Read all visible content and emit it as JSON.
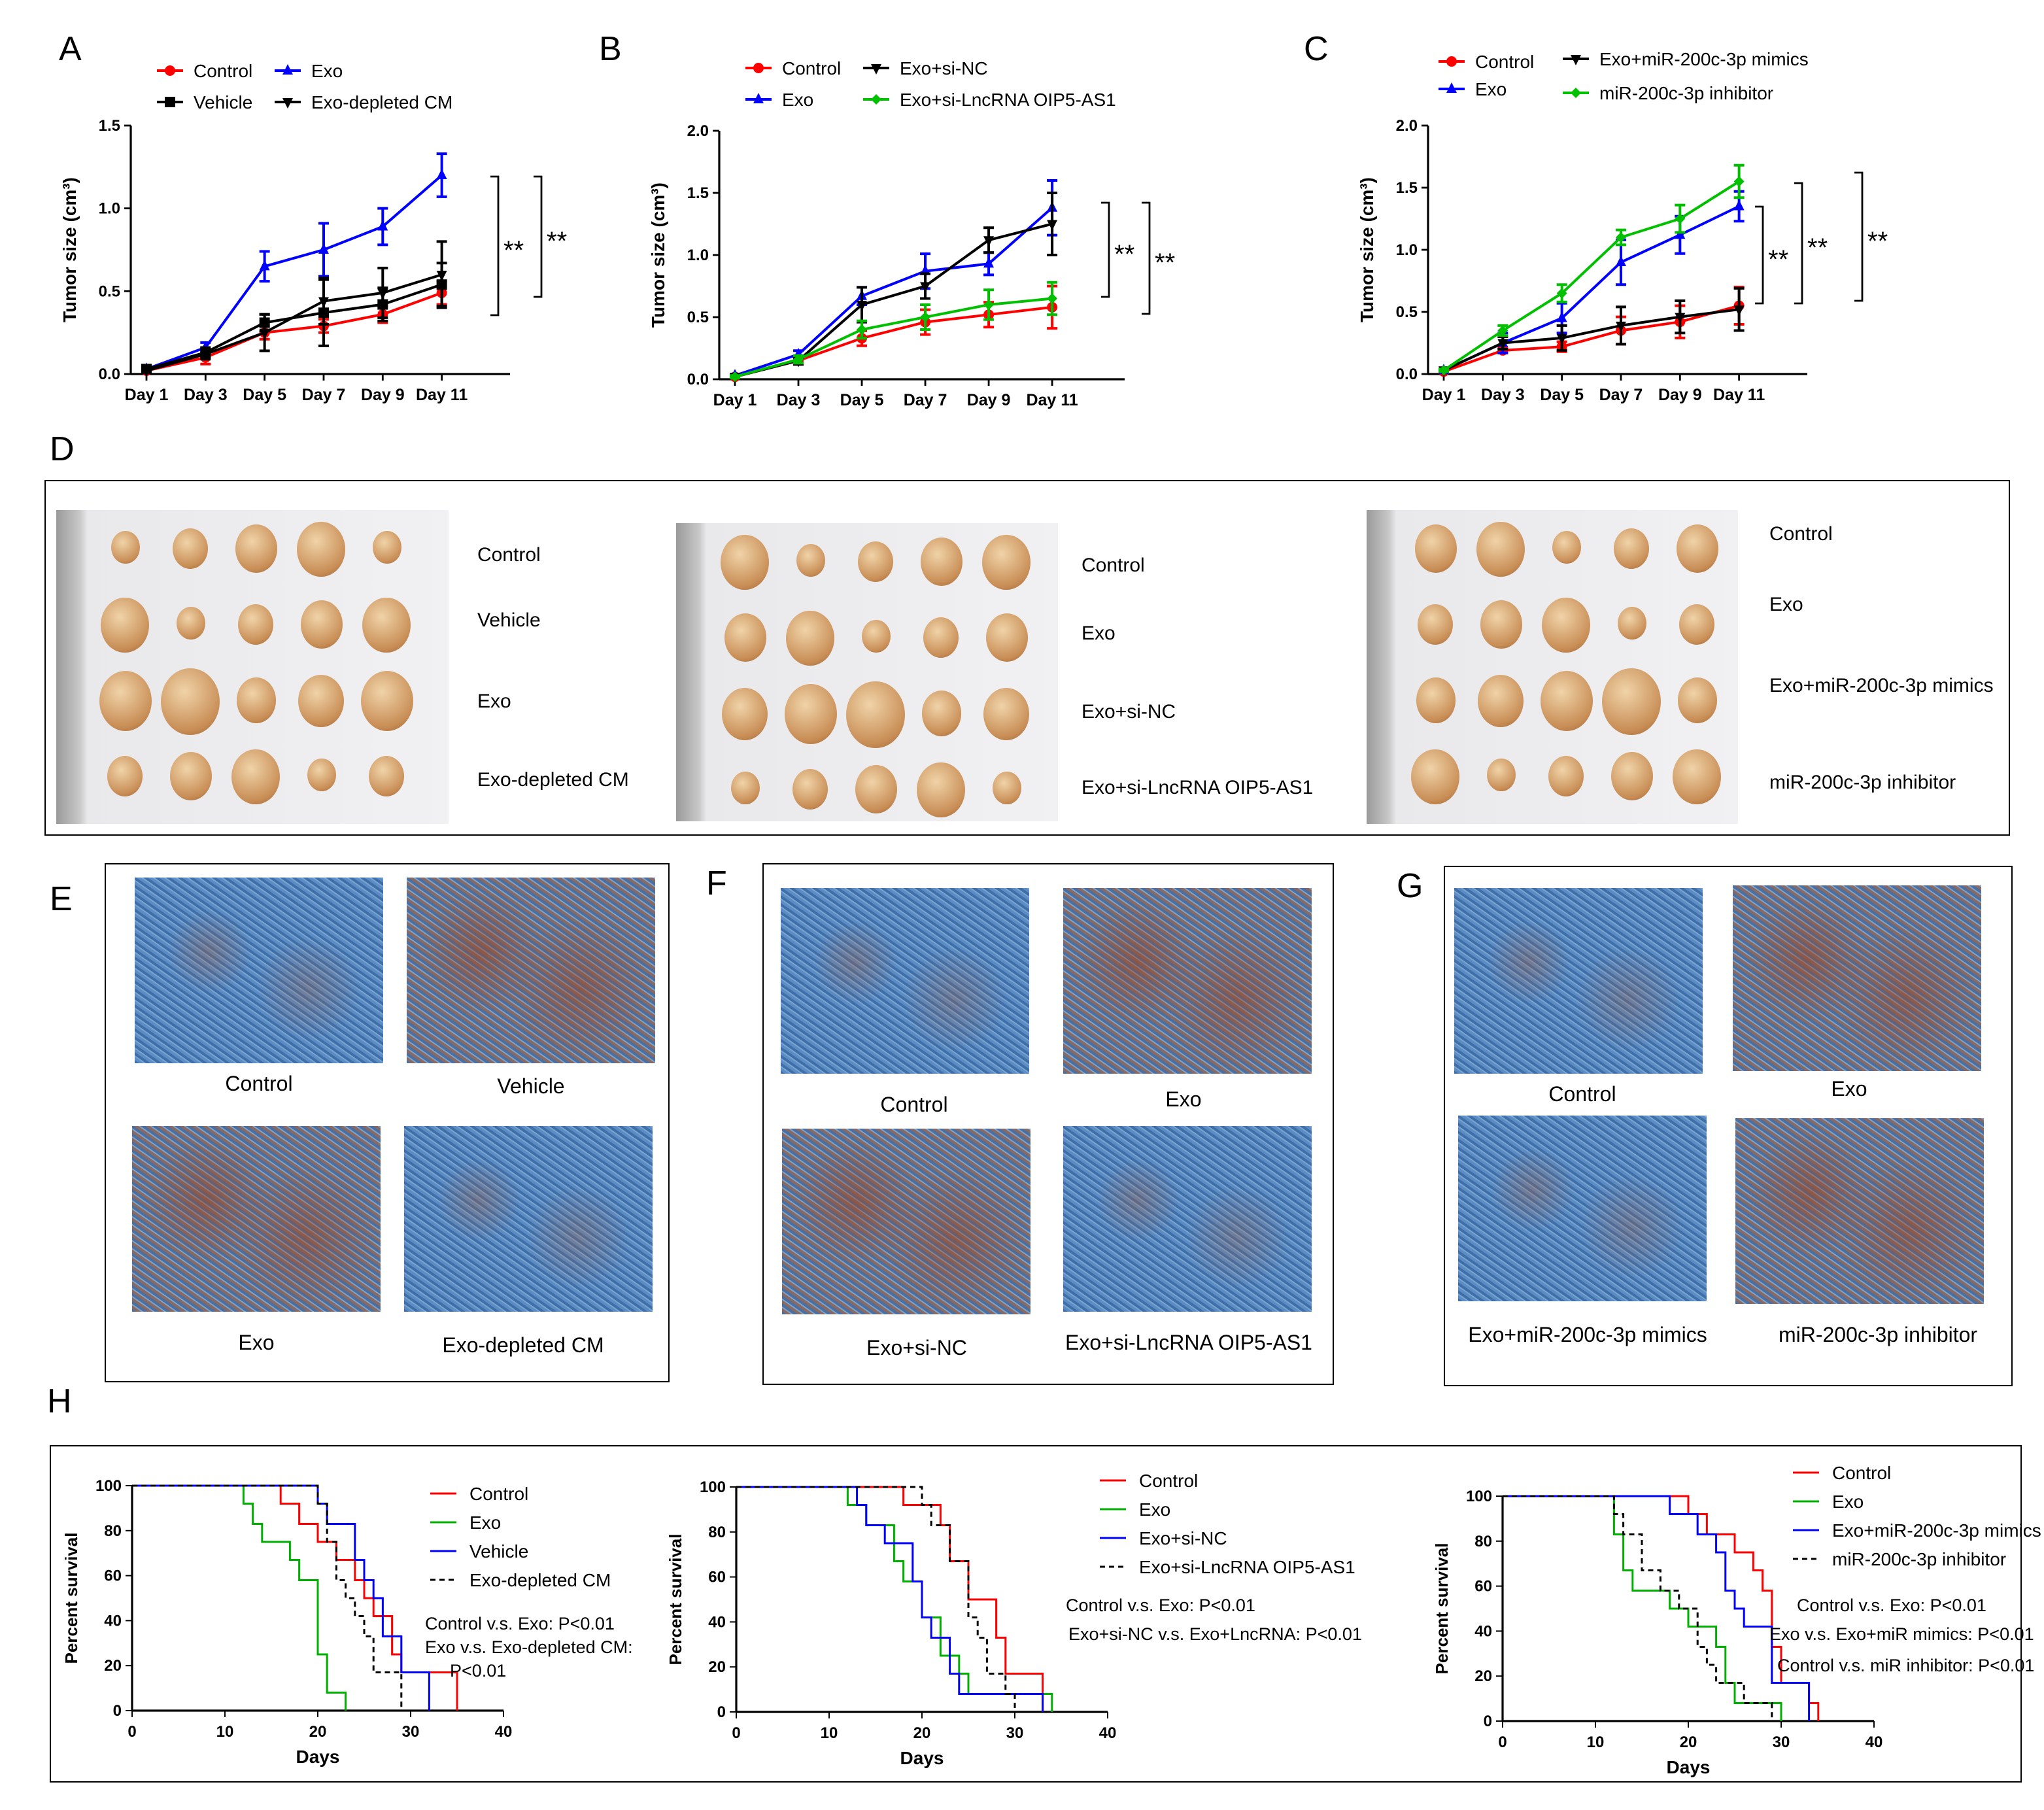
{
  "panel_letters": [
    "A",
    "B",
    "C",
    "D",
    "E",
    "F",
    "G",
    "H"
  ],
  "significance": "**",
  "chart_data": [
    {
      "type": "line",
      "id": "A",
      "ylabel": "Tumor size (cm³)",
      "ylim": [
        0,
        1.5
      ],
      "yticks": [
        "0.0",
        "0.5",
        "1.0",
        "1.5"
      ],
      "categories": [
        "Day 1",
        "Day 3",
        "Day 5",
        "Day 7",
        "Day 9",
        "Day 11"
      ],
      "series": [
        {
          "name": "Control",
          "color": "#ff0000",
          "marker": "circle",
          "values": [
            0.02,
            0.1,
            0.25,
            0.29,
            0.36,
            0.49
          ],
          "err": [
            0.01,
            0.04,
            0.04,
            0.04,
            0.05,
            0.07
          ]
        },
        {
          "name": "Exo",
          "color": "#0000ff",
          "marker": "triangle-up",
          "values": [
            0.03,
            0.16,
            0.65,
            0.75,
            0.89,
            1.2
          ],
          "err": [
            0.01,
            0.03,
            0.09,
            0.16,
            0.11,
            0.13
          ]
        },
        {
          "name": "Vehicle",
          "color": "#000000",
          "marker": "square",
          "values": [
            0.03,
            0.13,
            0.31,
            0.37,
            0.42,
            0.54
          ],
          "err": [
            0.01,
            0.03,
            0.05,
            0.2,
            0.1,
            0.13
          ]
        },
        {
          "name": "Exo-depleted CM",
          "color": "#000000",
          "marker": "triangle-down",
          "values": [
            0.02,
            0.12,
            0.25,
            0.44,
            0.49,
            0.6
          ],
          "err": [
            0.01,
            0.03,
            0.11,
            0.14,
            0.15,
            0.2
          ]
        }
      ]
    },
    {
      "type": "line",
      "id": "B",
      "ylabel": "Tumor size (cm³)",
      "ylim": [
        0,
        2.0
      ],
      "yticks": [
        "0.0",
        "0.5",
        "1.0",
        "1.5",
        "2.0"
      ],
      "categories": [
        "Day 1",
        "Day 3",
        "Day 5",
        "Day 7",
        "Day 9",
        "Day 11"
      ],
      "series": [
        {
          "name": "Control",
          "color": "#ff0000",
          "marker": "circle",
          "values": [
            0.02,
            0.15,
            0.33,
            0.46,
            0.52,
            0.58
          ],
          "err": [
            0.01,
            0.03,
            0.06,
            0.1,
            0.1,
            0.17
          ]
        },
        {
          "name": "Exo",
          "color": "#0000ff",
          "marker": "triangle-up",
          "values": [
            0.03,
            0.2,
            0.67,
            0.87,
            0.93,
            1.38
          ],
          "err": [
            0.01,
            0.03,
            0.07,
            0.14,
            0.09,
            0.22
          ]
        },
        {
          "name": "Exo+si-NC",
          "color": "#000000",
          "marker": "triangle-down",
          "values": [
            0.02,
            0.15,
            0.6,
            0.75,
            1.12,
            1.25
          ],
          "err": [
            0.01,
            0.03,
            0.14,
            0.1,
            0.1,
            0.25
          ]
        },
        {
          "name": "Exo+si-LncRNA OIP5-AS1",
          "color": "#00c000",
          "marker": "diamond",
          "values": [
            0.02,
            0.16,
            0.4,
            0.5,
            0.6,
            0.65
          ],
          "err": [
            0.01,
            0.03,
            0.07,
            0.1,
            0.12,
            0.13
          ]
        }
      ]
    },
    {
      "type": "line",
      "id": "C",
      "ylabel": "Tumor size (cm³)",
      "ylim": [
        0,
        2.0
      ],
      "yticks": [
        "0.0",
        "0.5",
        "1.0",
        "1.5",
        "2.0"
      ],
      "categories": [
        "Day 1",
        "Day 3",
        "Day 5",
        "Day 7",
        "Day 9",
        "Day 11"
      ],
      "series": [
        {
          "name": "Control",
          "color": "#ff0000",
          "marker": "circle",
          "values": [
            0.02,
            0.19,
            0.22,
            0.35,
            0.42,
            0.55
          ],
          "err": [
            0.01,
            0.02,
            0.04,
            0.11,
            0.13,
            0.15
          ]
        },
        {
          "name": "Exo",
          "color": "#0000ff",
          "marker": "triangle-up",
          "values": [
            0.03,
            0.25,
            0.45,
            0.9,
            1.12,
            1.35
          ],
          "err": [
            0.01,
            0.08,
            0.12,
            0.18,
            0.15,
            0.12
          ]
        },
        {
          "name": "Exo+miR-200c-3p mimics",
          "color": "#000000",
          "marker": "triangle-down",
          "values": [
            0.03,
            0.25,
            0.29,
            0.39,
            0.46,
            0.52
          ],
          "err": [
            0.01,
            0.05,
            0.1,
            0.15,
            0.13,
            0.17
          ]
        },
        {
          "name": "miR-200c-3p inhibitor",
          "color": "#00c000",
          "marker": "diamond",
          "values": [
            0.03,
            0.35,
            0.65,
            1.1,
            1.25,
            1.55
          ],
          "err": [
            0.01,
            0.04,
            0.07,
            0.06,
            0.11,
            0.13
          ]
        }
      ]
    },
    {
      "type": "line",
      "subtype": "kaplan-meier",
      "id": "H1",
      "xlabel": "Days",
      "ylabel": "Percent survival",
      "xlim": [
        0,
        40
      ],
      "ylim": [
        0,
        100
      ],
      "xticks": [
        "0",
        "10",
        "20",
        "30",
        "40"
      ],
      "yticks": [
        "0",
        "20",
        "40",
        "60",
        "80",
        "100"
      ],
      "annotations": [
        "Control v.s. Exo: P<0.01",
        "Exo v.s. Exo-depleted CM:",
        "P<0.01"
      ],
      "series": [
        {
          "name": "Control",
          "color": "#ff0000",
          "dash": false,
          "steps": [
            [
              0,
              100
            ],
            [
              16,
              92
            ],
            [
              18,
              83
            ],
            [
              20,
              75
            ],
            [
              22,
              67
            ],
            [
              24,
              58
            ],
            [
              25,
              50
            ],
            [
              26,
              42
            ],
            [
              28,
              25
            ],
            [
              29,
              17
            ],
            [
              30,
              17
            ],
            [
              35,
              0
            ]
          ]
        },
        {
          "name": "Exo",
          "color": "#00b000",
          "dash": false,
          "steps": [
            [
              0,
              100
            ],
            [
              12,
              92
            ],
            [
              13,
              83
            ],
            [
              14,
              75
            ],
            [
              17,
              67
            ],
            [
              18,
              58
            ],
            [
              20,
              25
            ],
            [
              21,
              8
            ],
            [
              23,
              0
            ]
          ]
        },
        {
          "name": "Vehicle",
          "color": "#0000ff",
          "dash": false,
          "steps": [
            [
              0,
              100
            ],
            [
              20,
              92
            ],
            [
              21,
              83
            ],
            [
              24,
              67
            ],
            [
              25,
              58
            ],
            [
              26,
              50
            ],
            [
              27,
              33
            ],
            [
              29,
              17
            ],
            [
              32,
              0
            ]
          ]
        },
        {
          "name": "Exo-depleted CM",
          "color": "#000000",
          "dash": true,
          "steps": [
            [
              0,
              100
            ],
            [
              20,
              92
            ],
            [
              21,
              75
            ],
            [
              22,
              58
            ],
            [
              23,
              50
            ],
            [
              24,
              42
            ],
            [
              25,
              33
            ],
            [
              26,
              17
            ],
            [
              28,
              17
            ],
            [
              29,
              0
            ]
          ]
        }
      ]
    },
    {
      "type": "line",
      "subtype": "kaplan-meier",
      "id": "H2",
      "xlabel": "Days",
      "ylabel": "Percent survival",
      "xlim": [
        0,
        40
      ],
      "ylim": [
        0,
        100
      ],
      "xticks": [
        "0",
        "10",
        "20",
        "30",
        "40"
      ],
      "yticks": [
        "0",
        "20",
        "40",
        "60",
        "80",
        "100"
      ],
      "annotations": [
        "Control v.s. Exo: P<0.01",
        "Exo+si-NC v.s. Exo+LncRNA: P<0.01"
      ],
      "series": [
        {
          "name": "Control",
          "color": "#ff0000",
          "dash": false,
          "steps": [
            [
              0,
              100
            ],
            [
              18,
              92
            ],
            [
              22,
              83
            ],
            [
              23,
              67
            ],
            [
              25,
              50
            ],
            [
              28,
              33
            ],
            [
              29,
              17
            ],
            [
              33,
              0
            ]
          ]
        },
        {
          "name": "Exo",
          "color": "#00b000",
          "dash": false,
          "steps": [
            [
              0,
              100
            ],
            [
              12,
              92
            ],
            [
              14,
              83
            ],
            [
              17,
              67
            ],
            [
              18,
              58
            ],
            [
              20,
              42
            ],
            [
              22,
              25
            ],
            [
              24,
              17
            ],
            [
              25,
              8
            ],
            [
              34,
              0
            ]
          ]
        },
        {
          "name": "Exo+si-NC",
          "color": "#0000ff",
          "dash": false,
          "steps": [
            [
              0,
              100
            ],
            [
              13,
              92
            ],
            [
              14,
              83
            ],
            [
              16,
              75
            ],
            [
              19,
              58
            ],
            [
              20,
              42
            ],
            [
              21,
              33
            ],
            [
              23,
              17
            ],
            [
              24,
              8
            ],
            [
              33,
              0
            ]
          ]
        },
        {
          "name": "Exo+si-LncRNA OIP5-AS1",
          "color": "#000000",
          "dash": true,
          "steps": [
            [
              0,
              100
            ],
            [
              20,
              92
            ],
            [
              21,
              83
            ],
            [
              23,
              67
            ],
            [
              25,
              42
            ],
            [
              26,
              33
            ],
            [
              27,
              17
            ],
            [
              29,
              8
            ],
            [
              30,
              0
            ]
          ]
        }
      ]
    },
    {
      "type": "line",
      "subtype": "kaplan-meier",
      "id": "H3",
      "xlabel": "Days",
      "ylabel": "Percent survival",
      "xlim": [
        0,
        40
      ],
      "ylim": [
        0,
        100
      ],
      "xticks": [
        "0",
        "10",
        "20",
        "30",
        "40"
      ],
      "yticks": [
        "0",
        "20",
        "40",
        "60",
        "80",
        "100"
      ],
      "annotations": [
        "Control v.s. Exo: P<0.01",
        "Exo v.s. Exo+miR mimics: P<0.01",
        "Control v.s. miR inhibitor: P<0.01"
      ],
      "series": [
        {
          "name": "Control",
          "color": "#ff0000",
          "dash": false,
          "steps": [
            [
              0,
              100
            ],
            [
              20,
              92
            ],
            [
              22,
              83
            ],
            [
              25,
              75
            ],
            [
              27,
              67
            ],
            [
              28,
              58
            ],
            [
              29,
              33
            ],
            [
              30,
              17
            ],
            [
              33,
              8
            ],
            [
              34,
              0
            ]
          ]
        },
        {
          "name": "Exo",
          "color": "#00b000",
          "dash": false,
          "steps": [
            [
              0,
              100
            ],
            [
              12,
              83
            ],
            [
              13,
              67
            ],
            [
              14,
              58
            ],
            [
              18,
              50
            ],
            [
              20,
              42
            ],
            [
              23,
              33
            ],
            [
              24,
              17
            ],
            [
              25,
              8
            ],
            [
              30,
              0
            ]
          ]
        },
        {
          "name": "Exo+miR-200c-3p mimics",
          "color": "#0000ff",
          "dash": false,
          "steps": [
            [
              0,
              100
            ],
            [
              18,
              92
            ],
            [
              21,
              83
            ],
            [
              23,
              75
            ],
            [
              24,
              58
            ],
            [
              25,
              50
            ],
            [
              26,
              42
            ],
            [
              29,
              17
            ],
            [
              33,
              0
            ]
          ]
        },
        {
          "name": "miR-200c-3p inhibitor",
          "color": "#000000",
          "dash": true,
          "steps": [
            [
              0,
              100
            ],
            [
              12,
              92
            ],
            [
              13,
              83
            ],
            [
              15,
              67
            ],
            [
              17,
              58
            ],
            [
              19,
              50
            ],
            [
              21,
              33
            ],
            [
              22,
              25
            ],
            [
              23,
              17
            ],
            [
              26,
              8
            ],
            [
              29,
              0
            ]
          ]
        }
      ]
    }
  ],
  "panelD": {
    "groups": [
      [
        "Control",
        "Vehicle",
        "Exo",
        "Exo-depleted CM"
      ],
      [
        "Control",
        "Exo",
        "Exo+si-NC",
        "Exo+si-LncRNA OIP5-AS1"
      ],
      [
        "Control",
        "Exo",
        "Exo+miR-200c-3p mimics",
        "miR-200c-3p inhibitor"
      ]
    ]
  },
  "panelE": [
    "Control",
    "Vehicle",
    "Exo",
    "Exo-depleted CM"
  ],
  "panelF": [
    "Control",
    "Exo",
    "Exo+si-NC",
    "Exo+si-LncRNA OIP5-AS1"
  ],
  "panelG": [
    "Control",
    "Exo",
    "Exo+miR-200c-3p mimics",
    "miR-200c-3p inhibitor"
  ]
}
